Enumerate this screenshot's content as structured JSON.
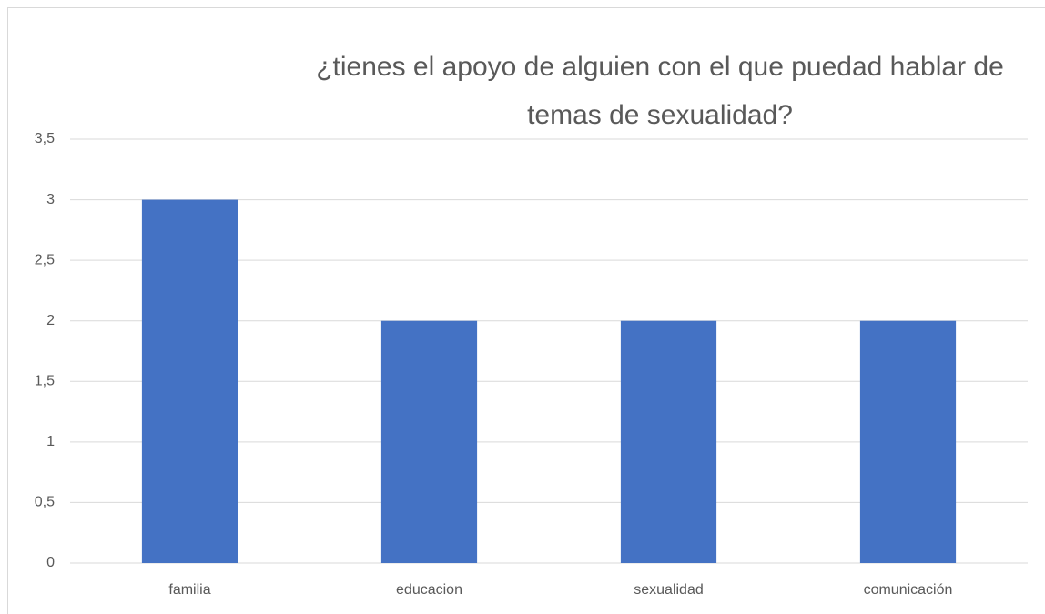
{
  "chart_data": {
    "type": "bar",
    "title": [
      "¿tienes el apoyo de alguien con el que puedad hablar de",
      "temas de sexualidad?"
    ],
    "categories": [
      "familia",
      "educacion",
      "sexualidad",
      "comunicación"
    ],
    "values": [
      3,
      2,
      2,
      2
    ],
    "color": "#4472c4",
    "ylim": [
      0,
      3.5
    ],
    "yticks": [
      0,
      {
        "value": 0.5,
        "label": "0,5"
      },
      1,
      {
        "value": 1.5,
        "label": "1,5"
      },
      2,
      {
        "value": 2.5,
        "label": "2,5"
      },
      3,
      {
        "value": 3.5,
        "label": "3,5"
      }
    ],
    "grid": true
  }
}
